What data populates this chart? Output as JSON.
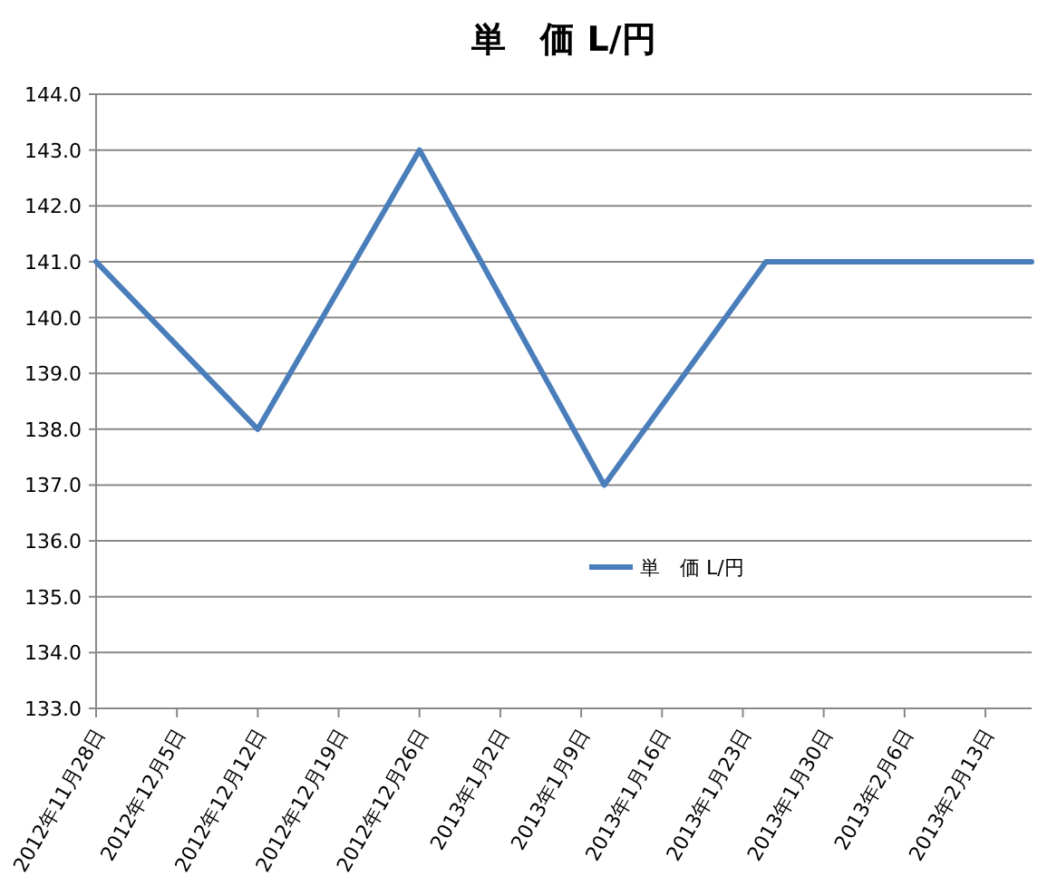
{
  "chart_data": {
    "type": "line",
    "title": "単　価 L/円",
    "x": [
      "2012-11-28",
      "2012-12-12",
      "2012-12-26",
      "2013-01-11",
      "2013-01-25",
      "2013-02-17"
    ],
    "series": [
      {
        "name": "単　価 L/円",
        "color": "#4a7ebb",
        "values": [
          141,
          138,
          143,
          137,
          141,
          141
        ]
      }
    ],
    "xlim": [
      "2012-11-28",
      "2013-02-17"
    ],
    "xticks": [
      {
        "value": "2012-11-28",
        "label": "2012年11月28日"
      },
      {
        "value": "2012-12-05",
        "label": "2012年12月5日"
      },
      {
        "value": "2012-12-12",
        "label": "2012年12月12日"
      },
      {
        "value": "2012-12-19",
        "label": "2012年12月19日"
      },
      {
        "value": "2012-12-26",
        "label": "2012年12月26日"
      },
      {
        "value": "2013-01-02",
        "label": "2013年1月2日"
      },
      {
        "value": "2013-01-09",
        "label": "2013年1月9日"
      },
      {
        "value": "2013-01-16",
        "label": "2013年1月16日"
      },
      {
        "value": "2013-01-23",
        "label": "2013年1月23日"
      },
      {
        "value": "2013-01-30",
        "label": "2013年1月30日"
      },
      {
        "value": "2013-02-06",
        "label": "2013年2月6日"
      },
      {
        "value": "2013-02-13",
        "label": "2013年2月13日"
      }
    ],
    "ylim": [
      133,
      144
    ],
    "yticks": [
      {
        "value": 133,
        "label": "133.0"
      },
      {
        "value": 134,
        "label": "134.0"
      },
      {
        "value": 135,
        "label": "135.0"
      },
      {
        "value": 136,
        "label": "136.0"
      },
      {
        "value": 137,
        "label": "137.0"
      },
      {
        "value": 138,
        "label": "138.0"
      },
      {
        "value": 139,
        "label": "139.0"
      },
      {
        "value": 140,
        "label": "140.0"
      },
      {
        "value": 141,
        "label": "141.0"
      },
      {
        "value": 142,
        "label": "142.0"
      },
      {
        "value": 143,
        "label": "143.0"
      },
      {
        "value": 144,
        "label": "144.0"
      }
    ],
    "grid": "y",
    "legend": "right",
    "marker": "none",
    "line_style": "solid"
  }
}
